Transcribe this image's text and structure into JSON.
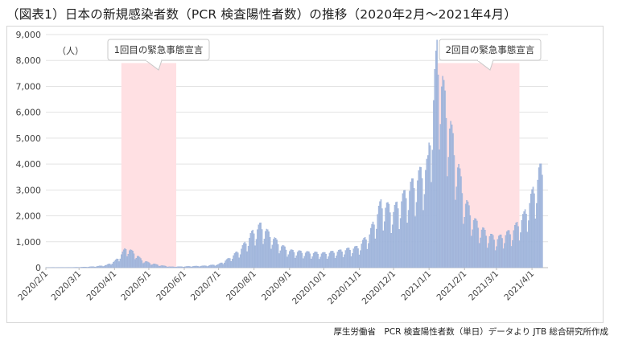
{
  "title": "（図表1）日本の新規感染者数（PCR 検査陽性者数）の推移（2020年2月～2021年4月）",
  "source": "厚生労働省　PCR 検査陽性者数（単日）データより JTB 総合研究所作成",
  "chart_data": {
    "type": "bar",
    "ylabel": "（人）",
    "ylim": [
      0,
      9000
    ],
    "yticks": [
      "0",
      "1,000",
      "2,000",
      "3,000",
      "4,000",
      "5,000",
      "6,000",
      "7,000",
      "8,000",
      "9,000"
    ],
    "xticks": [
      "2020/2/1",
      "2020/3/1",
      "2020/4/1",
      "2020/5/1",
      "2020/6/1",
      "2020/7/1",
      "2020/8/1",
      "2020/9/1",
      "2020/10/1",
      "2020/11/1",
      "2020/12/1",
      "2021/1/1",
      "2021/2/1",
      "2021/3/1",
      "2021/4/1"
    ],
    "grid": true,
    "bar_color": "#a9bde0",
    "shade_color": "#ffe0e3",
    "periods": [
      {
        "label": "1回目の緊急事態宣言",
        "start": "2020-04-07",
        "end": "2020-05-25"
      },
      {
        "label": "2回目の緊急事態宣言",
        "start": "2021-01-08",
        "end": "2021-03-21"
      }
    ],
    "series": [
      {
        "start_date": "2020-02-01",
        "anchors": [
          [
            "2020-02-01",
            2
          ],
          [
            "2020-02-20",
            10
          ],
          [
            "2020-03-01",
            15
          ],
          [
            "2020-03-15",
            40
          ],
          [
            "2020-03-25",
            90
          ],
          [
            "2020-04-01",
            230
          ],
          [
            "2020-04-05",
            380
          ],
          [
            "2020-04-11",
            720
          ],
          [
            "2020-04-18",
            550
          ],
          [
            "2020-04-25",
            280
          ],
          [
            "2020-05-01",
            180
          ],
          [
            "2020-05-10",
            90
          ],
          [
            "2020-05-20",
            30
          ],
          [
            "2020-06-01",
            40
          ],
          [
            "2020-06-20",
            70
          ],
          [
            "2020-07-01",
            120
          ],
          [
            "2020-07-10",
            330
          ],
          [
            "2020-07-20",
            650
          ],
          [
            "2020-07-31",
            1300
          ],
          [
            "2020-08-07",
            1550
          ],
          [
            "2020-08-15",
            1200
          ],
          [
            "2020-08-25",
            800
          ],
          [
            "2020-09-01",
            620
          ],
          [
            "2020-09-15",
            560
          ],
          [
            "2020-10-01",
            520
          ],
          [
            "2020-10-15",
            610
          ],
          [
            "2020-10-31",
            750
          ],
          [
            "2020-11-10",
            1250
          ],
          [
            "2020-11-20",
            2350
          ],
          [
            "2020-12-01",
            2100
          ],
          [
            "2020-12-15",
            2900
          ],
          [
            "2020-12-31",
            3800
          ],
          [
            "2021-01-08",
            7850
          ],
          [
            "2021-01-15",
            6100
          ],
          [
            "2021-01-25",
            4000
          ],
          [
            "2021-02-01",
            2500
          ],
          [
            "2021-02-10",
            1700
          ],
          [
            "2021-02-20",
            1250
          ],
          [
            "2021-03-01",
            1050
          ],
          [
            "2021-03-15",
            1350
          ],
          [
            "2021-03-25",
            1900
          ],
          [
            "2021-04-01",
            2650
          ],
          [
            "2021-04-07",
            3450
          ],
          [
            "2021-04-10",
            3650
          ]
        ]
      }
    ]
  }
}
